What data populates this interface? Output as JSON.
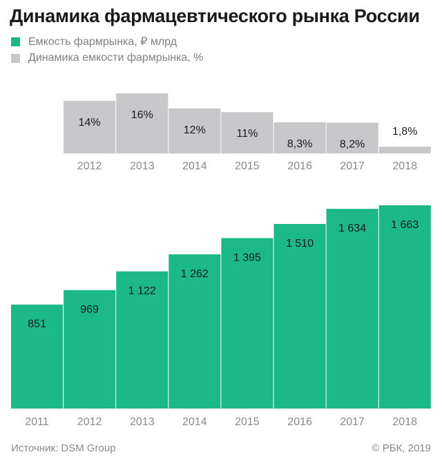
{
  "title": "Динамика фармацевтического рынка России",
  "legend": [
    {
      "label": "Емкость фармрынка, ₽ млрд",
      "color": "#1db887"
    },
    {
      "label": "Динамика емкости фармрынка, %",
      "color": "#c8c7c9"
    }
  ],
  "footer": {
    "source": "Источник: DSM Group",
    "credit": "© РБК, 2019"
  },
  "chart_data": [
    {
      "type": "bar",
      "series_ref": "Динамика емкости фармрынка, %",
      "categories": [
        "2012",
        "2013",
        "2014",
        "2015",
        "2016",
        "2017",
        "2018"
      ],
      "values": [
        14,
        16,
        12,
        11,
        8.3,
        8.2,
        1.8
      ],
      "value_labels": [
        "14%",
        "16%",
        "12%",
        "11%",
        "8,3%",
        "8,2%",
        "1,8%"
      ],
      "ylim": [
        0,
        16
      ],
      "color": "#c8c7c9"
    },
    {
      "type": "bar",
      "series_ref": "Емкость фармрынка, ₽ млрд",
      "categories": [
        "2011",
        "2012",
        "2013",
        "2014",
        "2015",
        "2016",
        "2017",
        "2018"
      ],
      "values": [
        851,
        969,
        1122,
        1262,
        1395,
        1510,
        1634,
        1663
      ],
      "value_labels": [
        "851",
        "969",
        "1 122",
        "1 262",
        "1 395",
        "1 510",
        "1 634",
        "1 663"
      ],
      "ylim": [
        0,
        1663
      ],
      "color": "#1db887"
    }
  ]
}
